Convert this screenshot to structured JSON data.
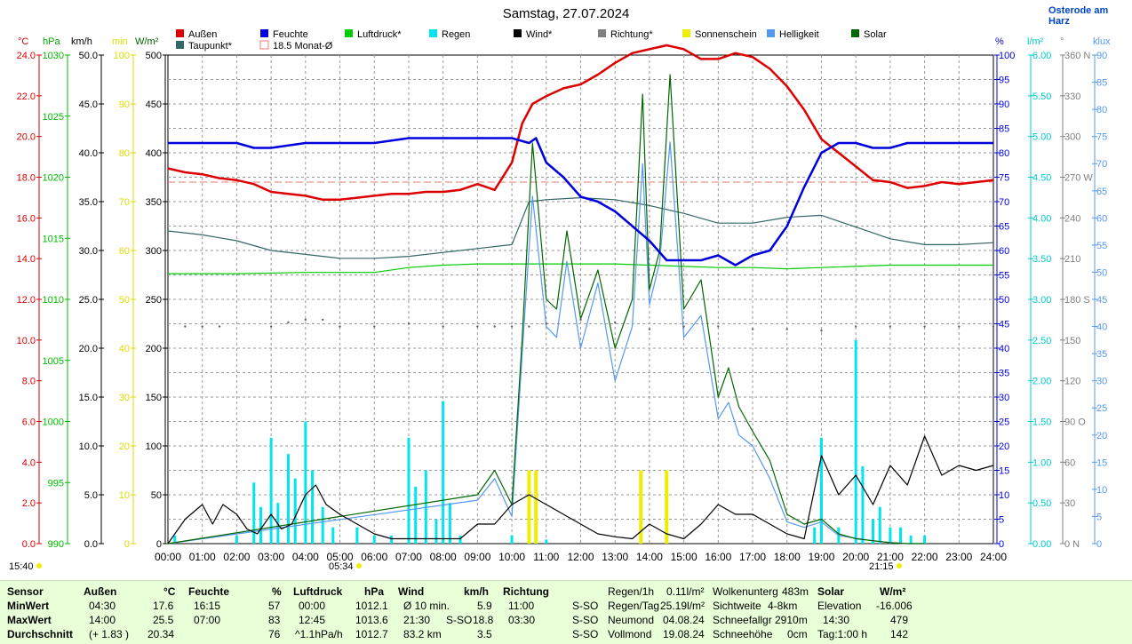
{
  "title": "Samstag, 27.07.2024",
  "location": "Osterode am Harz",
  "legend": [
    {
      "label": "Außen",
      "color": "#dd0000"
    },
    {
      "label": "Feuchte",
      "color": "#0000dd"
    },
    {
      "label": "Luftdruck*",
      "color": "#00cc00"
    },
    {
      "label": "Regen",
      "color": "#00e5ee"
    },
    {
      "label": "Wind*",
      "color": "#000000"
    },
    {
      "label": "Richtung*",
      "color": "#808080"
    },
    {
      "label": "Sonnenschein",
      "color": "#eeee00"
    },
    {
      "label": "Helligkeit",
      "color": "#5599ee"
    },
    {
      "label": "Solar",
      "color": "#006600"
    },
    {
      "label": "Taupunkt*",
      "color": "#336666"
    },
    {
      "label": "18.5 Monat-Ø",
      "color": "#ee7777"
    }
  ],
  "axis_units": [
    "°C",
    "hPa",
    "km/h",
    "min",
    "W/m²",
    "%",
    "l/m²",
    "°",
    "klux"
  ],
  "axis_ticks": {
    "temp": [
      "24.0",
      "22.0",
      "20.0",
      "18.0",
      "16.0",
      "14.0",
      "12.0",
      "10.0",
      "8.0",
      "6.0",
      "4.0",
      "2.0",
      "0.0"
    ],
    "hpa": [
      "1030",
      "1025",
      "1020",
      "1015",
      "1010",
      "1005",
      "1000",
      "995",
      "990"
    ],
    "kmh": [
      "50.0",
      "45.0",
      "40.0",
      "35.0",
      "30.0",
      "25.0",
      "20.0",
      "15.0",
      "10.0",
      "5.0",
      "0.0"
    ],
    "min": [
      "100",
      "90",
      "80",
      "70",
      "60",
      "50",
      "40",
      "30",
      "20",
      "10",
      "0"
    ],
    "wm2": [
      "500",
      "450",
      "400",
      "350",
      "300",
      "250",
      "200",
      "150",
      "100",
      "50",
      "0"
    ],
    "pct": [
      "100",
      "95",
      "90",
      "85",
      "80",
      "75",
      "70",
      "65",
      "60",
      "55",
      "50",
      "45",
      "40",
      "35",
      "30",
      "25",
      "20",
      "15",
      "10",
      "5",
      "0"
    ],
    "lm2": [
      "6.00",
      "5.50",
      "5.00",
      "4.50",
      "4.00",
      "3.50",
      "3.00",
      "2.50",
      "2.00",
      "1.50",
      "1.00",
      "0.50",
      "0.00"
    ],
    "deg": [
      "360 N",
      "330",
      "300",
      "270 W",
      "240",
      "210",
      "180 S",
      "150",
      "120",
      "90 O",
      "60",
      "30",
      "0 N"
    ],
    "klux": [
      "90",
      "85",
      "80",
      "75",
      "70",
      "65",
      "60",
      "55",
      "50",
      "45",
      "40",
      "35",
      "30",
      "25",
      "20",
      "15",
      "10",
      "5",
      "0"
    ]
  },
  "time_labels": [
    "00:00",
    "01:00",
    "02:00",
    "03:00",
    "04:00",
    "05:00",
    "06:00",
    "07:00",
    "08:00",
    "09:00",
    "10:00",
    "11:00",
    "12:00",
    "13:00",
    "14:00",
    "15:00",
    "16:00",
    "17:00",
    "18:00",
    "19:00",
    "20:00",
    "21:00",
    "22:00",
    "23:00",
    "24:00"
  ],
  "now_label": "15:40",
  "sunrise_label": "05:34",
  "sunset_label": "21:15",
  "chart_data": {
    "type": "line",
    "x_unit": "hour of day",
    "xlim": [
      0,
      24
    ],
    "monthly_avg_temp": 18.5,
    "series": [
      {
        "name": "Außen",
        "unit": "°C",
        "ylim": [
          0,
          25
        ],
        "x": [
          0,
          0.5,
          1,
          1.5,
          2,
          2.5,
          3,
          3.5,
          4,
          4.5,
          5,
          5.5,
          6,
          6.5,
          7,
          7.5,
          8,
          8.5,
          9,
          9.5,
          10,
          10.3,
          10.6,
          11,
          11.5,
          12,
          12.5,
          13,
          13.5,
          14,
          14.5,
          15,
          15.5,
          16,
          16.5,
          17,
          17.5,
          18,
          18.5,
          19,
          19.5,
          20,
          20.5,
          21,
          21.5,
          22,
          22.5,
          23,
          23.5,
          24
        ],
        "y": [
          19.2,
          19.0,
          18.9,
          18.7,
          18.6,
          18.4,
          18.0,
          17.9,
          17.8,
          17.6,
          17.6,
          17.7,
          17.8,
          17.9,
          17.9,
          18.0,
          18.0,
          18.1,
          18.4,
          18.1,
          19.5,
          21.5,
          22.5,
          22.9,
          23.3,
          23.5,
          24.0,
          24.6,
          25.1,
          25.3,
          25.5,
          25.3,
          24.8,
          24.8,
          25.1,
          24.9,
          24.3,
          23.4,
          22.2,
          20.7,
          20.0,
          19.3,
          18.6,
          18.5,
          18.2,
          18.3,
          18.5,
          18.4,
          18.5,
          18.6
        ]
      },
      {
        "name": "Feuchte",
        "unit": "%",
        "ylim": [
          0,
          100
        ],
        "x": [
          0,
          1,
          2,
          2.5,
          3,
          4,
          5,
          6,
          7,
          8,
          9,
          10,
          10.5,
          10.7,
          11,
          11.5,
          12,
          12.5,
          13,
          13.5,
          14,
          14.5,
          15,
          15.5,
          16,
          16.5,
          17,
          17.5,
          18,
          18.5,
          19,
          19.5,
          20,
          20.5,
          21,
          21.5,
          22,
          23,
          24
        ],
        "y": [
          82,
          82,
          82,
          81,
          81,
          82,
          82,
          82,
          83,
          83,
          83,
          83,
          82,
          83,
          78,
          75,
          71,
          70,
          68,
          65,
          62,
          58,
          58,
          58,
          59,
          57,
          59,
          60,
          65,
          73,
          80,
          82,
          82,
          81,
          81,
          82,
          82,
          82,
          82
        ]
      },
      {
        "name": "Luftdruck*",
        "unit": "hPa",
        "ylim": [
          990,
          1030
        ],
        "x": [
          0,
          2,
          4,
          6,
          7,
          8,
          9,
          10,
          11,
          12,
          13,
          14,
          15,
          16,
          17,
          18,
          19,
          20,
          21,
          22,
          23,
          24
        ],
        "y": [
          1012.1,
          1012.1,
          1012.2,
          1012.2,
          1012.6,
          1012.8,
          1012.9,
          1012.9,
          1012.9,
          1012.9,
          1012.9,
          1012.8,
          1012.7,
          1012.6,
          1012.6,
          1012.5,
          1012.6,
          1012.7,
          1012.8,
          1012.8,
          1012.8,
          1012.8
        ]
      },
      {
        "name": "Taupunkt*",
        "unit": "°C",
        "ylim": [
          0,
          25
        ],
        "x": [
          0,
          1,
          2,
          3,
          4,
          5,
          6,
          7,
          8,
          9,
          10,
          10.5,
          11,
          12,
          13,
          14,
          15,
          16,
          17,
          18,
          19,
          20,
          21,
          22,
          23,
          24
        ],
        "y": [
          16.0,
          15.8,
          15.5,
          15.0,
          14.8,
          14.6,
          14.6,
          14.7,
          14.9,
          15.1,
          15.3,
          17.5,
          17.6,
          17.7,
          17.6,
          17.3,
          16.9,
          16.4,
          16.4,
          16.7,
          16.8,
          16.2,
          15.6,
          15.3,
          15.3,
          15.4
        ]
      },
      {
        "name": "Wind*",
        "unit": "km/h",
        "ylim": [
          0,
          50
        ],
        "x": [
          0,
          0.5,
          1,
          1.3,
          1.6,
          2,
          2.3,
          2.6,
          3,
          3.3,
          3.6,
          4,
          4.3,
          4.6,
          5,
          5.5,
          6,
          6.5,
          7,
          7.5,
          8,
          8.5,
          9,
          9.5,
          10,
          10.5,
          11,
          11.5,
          12,
          12.5,
          13,
          13.5,
          14,
          14.5,
          15,
          15.5,
          16,
          16.5,
          17,
          17.5,
          18,
          18.5,
          19,
          19.5,
          20,
          20.5,
          21,
          21.5,
          22,
          22.5,
          23,
          23.5,
          24
        ],
        "y": [
          0,
          2.5,
          4,
          2,
          4,
          3,
          1.5,
          1,
          3,
          1.5,
          2,
          5,
          6,
          4,
          3,
          2,
          1,
          0.5,
          0.5,
          0.5,
          0.5,
          0.5,
          2,
          2,
          4,
          5,
          4,
          3,
          2,
          1,
          0.7,
          0.5,
          2,
          1,
          0.5,
          2,
          4,
          3,
          3,
          2,
          1,
          0.5,
          9,
          5,
          7,
          4,
          8,
          6,
          11,
          7,
          8,
          7.5,
          8
        ]
      },
      {
        "name": "Richtung*",
        "unit": "°",
        "ylim": [
          0,
          360
        ],
        "x": [
          0.5,
          1,
          1.5,
          3,
          3.5,
          4,
          4.5,
          5,
          6,
          7,
          8,
          9,
          9.5,
          10,
          10.5,
          11,
          12,
          13,
          14,
          15,
          16,
          17,
          18,
          19,
          20,
          21,
          22,
          23,
          24
        ],
        "y": [
          160,
          160,
          160,
          160,
          163,
          165,
          165,
          160,
          160,
          162,
          160,
          160,
          160,
          160,
          160,
          162,
          165,
          163,
          158,
          160,
          160,
          158,
          158,
          157,
          160,
          160,
          160,
          160,
          160
        ]
      },
      {
        "name": "Solar",
        "unit": "W/m²",
        "ylim": [
          0,
          500
        ],
        "x": [
          0,
          9,
          9.5,
          10,
          10.3,
          10.6,
          11,
          11.3,
          11.6,
          12,
          12.5,
          13,
          13.5,
          13.8,
          14,
          14.3,
          14.6,
          15,
          15.5,
          16,
          16.3,
          16.6,
          17,
          17.5,
          18,
          18.5,
          19,
          19.5,
          20,
          20.5,
          21,
          21.5,
          22
        ],
        "y": [
          0,
          50,
          75,
          40,
          210,
          410,
          250,
          240,
          320,
          230,
          280,
          200,
          250,
          460,
          260,
          300,
          480,
          240,
          270,
          150,
          180,
          140,
          115,
          85,
          30,
          20,
          25,
          10,
          5,
          3,
          1,
          0,
          0
        ]
      },
      {
        "name": "Helligkeit",
        "unit": "klux",
        "ylim": [
          0,
          90
        ],
        "x": [
          0,
          9,
          9.5,
          10,
          10.3,
          10.6,
          11,
          11.3,
          11.6,
          12,
          12.5,
          13,
          13.5,
          13.8,
          14,
          14.3,
          14.6,
          15,
          15.5,
          16,
          16.3,
          16.6,
          17,
          17.5,
          18,
          18.5,
          19,
          19.5,
          20,
          20.5,
          21,
          21.5,
          22
        ],
        "y": [
          0,
          8,
          12,
          5,
          35,
          64,
          40,
          38,
          52,
          36,
          48,
          30,
          40,
          70,
          44,
          52,
          74,
          38,
          42,
          23,
          26,
          20,
          18,
          12,
          4,
          3,
          4,
          1.5,
          1,
          0.5,
          0.2,
          0,
          0
        ]
      },
      {
        "name": "Regen",
        "type": "bar",
        "unit": "l/m²",
        "ylim": [
          0,
          6
        ],
        "x": [
          0.2,
          2.0,
          2.5,
          2.7,
          3.0,
          3.2,
          3.5,
          3.7,
          4.0,
          4.2,
          4.5,
          4.8,
          5.5,
          6.0,
          6.5,
          7.0,
          7.2,
          7.5,
          7.8,
          8.0,
          8.2,
          8.5,
          10.0,
          10.5,
          11.0,
          18.8,
          19.0,
          19.5,
          20.0,
          20.2,
          20.5,
          20.7,
          21.0,
          21.3,
          21.6,
          22.0
        ],
        "y": [
          0.1,
          0.1,
          0.75,
          0.45,
          1.3,
          0.5,
          1.1,
          0.8,
          1.5,
          0.9,
          0.45,
          0.2,
          0.2,
          0.1,
          0.1,
          1.3,
          0.7,
          0.9,
          0.3,
          1.75,
          0.5,
          0.1,
          0.1,
          0.05,
          0.05,
          0.2,
          1.3,
          0.2,
          2.5,
          0.95,
          0.3,
          0.45,
          0.2,
          0.2,
          0.1,
          0.1
        ]
      },
      {
        "name": "Sonnenschein",
        "type": "bar",
        "unit": "min",
        "ylim": [
          0,
          100
        ],
        "x": [
          10.5,
          10.7,
          13.75,
          14.5
        ],
        "y": [
          15,
          15,
          15,
          15
        ]
      }
    ]
  },
  "footer": {
    "headers": {
      "sensor": "Sensor",
      "aussen": "Außen",
      "aussen_unit": "°C",
      "feuchte": "Feuchte",
      "feuchte_unit": "%",
      "luftdruck": "Luftdruck",
      "luftdruck_unit": "hPa",
      "wind": "Wind",
      "wind_unit": "km/h",
      "richtung": "Richtung",
      "solar": "Solar",
      "solar_unit": "W/m²"
    },
    "rows": {
      "min": {
        "label": "MinWert",
        "aussen_time": "04:30",
        "aussen_val": "17.6",
        "feuchte_time": "16:15",
        "feuchte_val": "57",
        "ld_time": "00:00",
        "ld_val": "1012.1",
        "wind_time": "Ø 10 min.",
        "wind_val": "5.9",
        "ri_time": "11:00",
        "ri_val": "S-SO"
      },
      "max": {
        "label": "MaxWert",
        "aussen_time": "14:00",
        "aussen_val": "25.5",
        "feuchte_time": "07:00",
        "feuchte_val": "83",
        "ld_time": "12:45",
        "ld_val": "1013.6",
        "wind_time": "21:30",
        "wind_dir": "S-SO",
        "wind_val": "18.8",
        "ri_time": "03:30",
        "ri_val": "S-SO"
      },
      "avg": {
        "label": "Durchschnitt",
        "aussen_time": "(+ 1.83 )",
        "aussen_val": "20.34",
        "feuchte_val": "76",
        "ld_time": "^1.1hPa/h",
        "ld_val": "1012.7",
        "wind_time": "83.2 km",
        "wind_val": "3.5",
        "ri_val": "S-SO"
      }
    },
    "misc": [
      {
        "k": "Regen/1h",
        "v": "0.11l/m²"
      },
      {
        "k": "Regen/Tag",
        "v": "25.19l/m²"
      },
      {
        "k": "Neumond",
        "v": "04.08.24"
      },
      {
        "k": "Vollmond",
        "v": "19.08.24"
      }
    ],
    "misc2": [
      {
        "k": "Wolkenunterg",
        "v": "483m"
      },
      {
        "k": "Sichtweite",
        "v": "4-8km"
      },
      {
        "k": "Schneefallgr",
        "v": "2910m"
      },
      {
        "k": "Schneehöhe",
        "v": "0cm"
      }
    ],
    "solar_rows": [
      {
        "k": "Elevation",
        "v": "-16.006"
      },
      {
        "k": "14:30",
        "v": "479"
      },
      {
        "k": "Tag:1:00 h",
        "v": "142"
      }
    ]
  }
}
